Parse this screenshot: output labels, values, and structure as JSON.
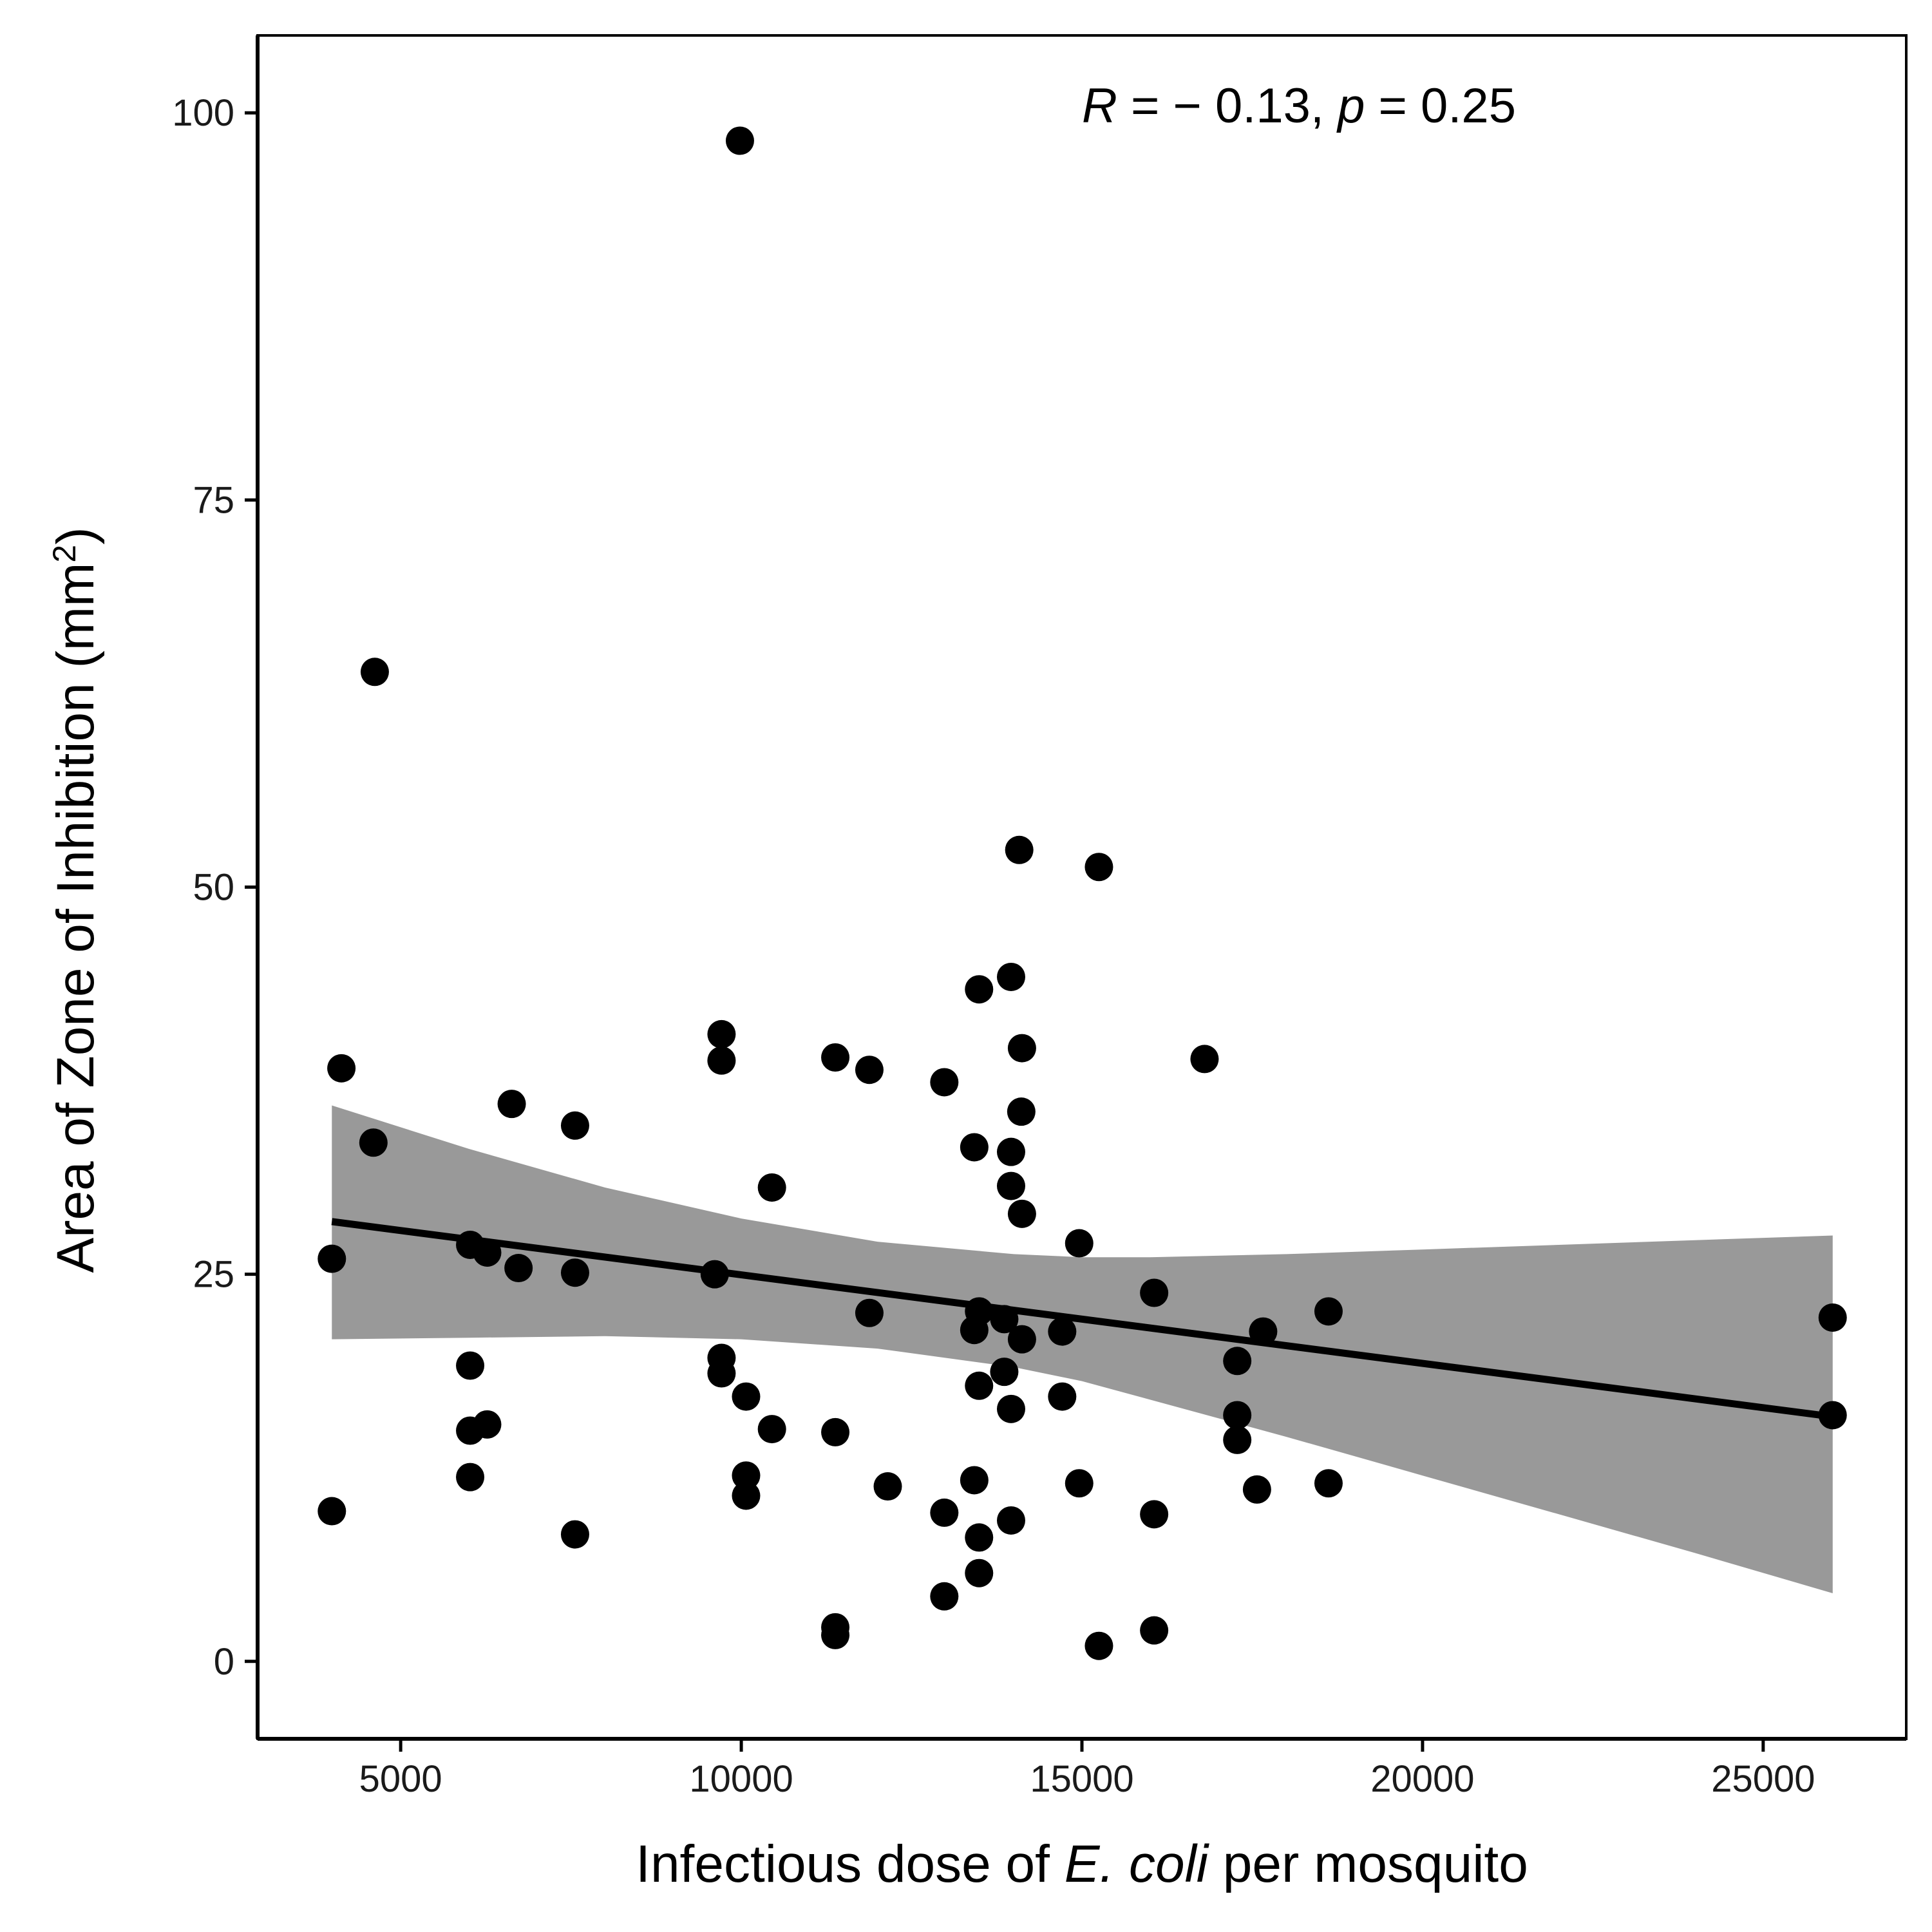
{
  "chart_data": {
    "type": "scatter",
    "title": "",
    "xlabel": {
      "parts": [
        {
          "text": "Infectious dose of ",
          "italic": false
        },
        {
          "text": "E. coli",
          "italic": true
        },
        {
          "text": " per mosquito",
          "italic": false
        }
      ]
    },
    "ylabel": {
      "parts": [
        {
          "text": "Area of Zone of Inhibition (mm",
          "italic": false
        },
        {
          "text": "2",
          "sup": true
        },
        {
          "text": ")",
          "italic": false
        }
      ]
    },
    "xlim": [
      2900,
      27100
    ],
    "ylim": [
      -5,
      105
    ],
    "x_ticks": [
      5000,
      10000,
      15000,
      20000,
      25000
    ],
    "x_tick_labels": [
      "5000",
      "10000",
      "15000",
      "20000",
      "25000"
    ],
    "y_ticks": [
      0,
      25,
      50,
      75,
      100
    ],
    "y_tick_labels": [
      "0",
      "25",
      "50",
      "75",
      "100"
    ],
    "grid": false,
    "annotation": {
      "R_label": "R",
      "R_value": " = − 0.13, ",
      "p_label": "p",
      "p_value": " = 0.25"
    },
    "colors": {
      "points": "#000000",
      "fit_line": "#000000",
      "confidence_band": "#999999",
      "axis": "#000000"
    },
    "series": [
      {
        "points": [
          [
            9980,
            98.2
          ],
          [
            4620,
            63.9
          ],
          [
            14080,
            52.4
          ],
          [
            15250,
            51.3
          ],
          [
            13960,
            44.2
          ],
          [
            13490,
            43.4
          ],
          [
            9710,
            40.5
          ],
          [
            14120,
            39.6
          ],
          [
            4130,
            38.3
          ],
          [
            9710,
            38.8
          ],
          [
            11380,
            39.0
          ],
          [
            11880,
            38.2
          ],
          [
            16800,
            38.9
          ],
          [
            12980,
            37.4
          ],
          [
            6630,
            36.0
          ],
          [
            14110,
            35.5
          ],
          [
            7560,
            34.6
          ],
          [
            4600,
            33.5
          ],
          [
            13420,
            33.2
          ],
          [
            13960,
            32.9
          ],
          [
            10450,
            30.6
          ],
          [
            13960,
            30.7
          ],
          [
            14120,
            28.9
          ],
          [
            14960,
            27.0
          ],
          [
            6020,
            26.9
          ],
          [
            6270,
            26.4
          ],
          [
            3990,
            26.0
          ],
          [
            6730,
            25.4
          ],
          [
            7560,
            25.1
          ],
          [
            9610,
            25.0
          ],
          [
            16060,
            23.8
          ],
          [
            11880,
            22.5
          ],
          [
            13490,
            22.6
          ],
          [
            13860,
            22.1
          ],
          [
            18620,
            22.6
          ],
          [
            26020,
            22.2
          ],
          [
            13420,
            21.4
          ],
          [
            14710,
            21.3
          ],
          [
            17660,
            21.3
          ],
          [
            14120,
            20.8
          ],
          [
            9710,
            19.6
          ],
          [
            6020,
            19.1
          ],
          [
            17280,
            19.4
          ],
          [
            9710,
            18.6
          ],
          [
            13860,
            18.7
          ],
          [
            13490,
            17.8
          ],
          [
            10070,
            17.1
          ],
          [
            14710,
            17.1
          ],
          [
            13960,
            16.3
          ],
          [
            17280,
            15.9
          ],
          [
            26020,
            15.9
          ],
          [
            6270,
            15.3
          ],
          [
            6020,
            14.9
          ],
          [
            10450,
            15.0
          ],
          [
            11380,
            14.8
          ],
          [
            17280,
            14.3
          ],
          [
            6020,
            11.9
          ],
          [
            10070,
            12.0
          ],
          [
            13420,
            11.7
          ],
          [
            14960,
            11.5
          ],
          [
            18620,
            11.5
          ],
          [
            10070,
            10.7
          ],
          [
            12150,
            11.3
          ],
          [
            17570,
            11.1
          ],
          [
            3990,
            9.7
          ],
          [
            12980,
            9.6
          ],
          [
            16060,
            9.5
          ],
          [
            13960,
            9.1
          ],
          [
            7560,
            8.2
          ],
          [
            13490,
            8.0
          ],
          [
            13490,
            5.7
          ],
          [
            12980,
            4.2
          ],
          [
            11380,
            2.2
          ],
          [
            11380,
            1.7
          ],
          [
            16060,
            2.0
          ],
          [
            15250,
            1.0
          ]
        ]
      }
    ],
    "fit_line": [
      [
        3990,
        28.4
      ],
      [
        26020,
        15.8
      ]
    ],
    "confidence_band": {
      "x": [
        3990,
        6000,
        8000,
        10000,
        12000,
        14000,
        15000,
        16000,
        18000,
        20000,
        22000,
        24000,
        26020
      ],
      "upper": [
        35.9,
        33.1,
        30.6,
        28.6,
        27.1,
        26.3,
        26.1,
        26.1,
        26.3,
        26.6,
        26.9,
        27.2,
        27.5
      ],
      "lower": [
        20.8,
        20.9,
        21.0,
        20.8,
        20.2,
        19.0,
        18.1,
        16.9,
        14.5,
        12.0,
        9.5,
        7.0,
        4.4
      ]
    }
  }
}
